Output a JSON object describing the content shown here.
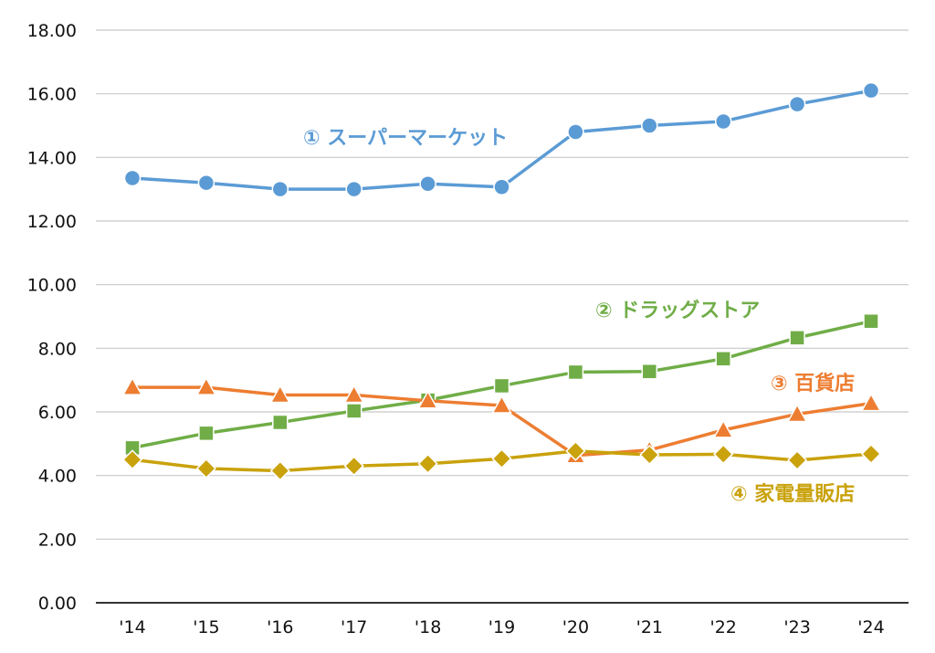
{
  "chart_data": {
    "type": "line",
    "categories": [
      "'14",
      "'15",
      "'16",
      "'17",
      "'18",
      "'19",
      "'20",
      "'21",
      "'22",
      "'23",
      "'24"
    ],
    "ylim": [
      0,
      18
    ],
    "yticks": [
      "0.00",
      "2.00",
      "4.00",
      "6.00",
      "8.00",
      "10.00",
      "12.00",
      "14.00",
      "16.00",
      "18.00"
    ],
    "grid": true,
    "series": [
      {
        "name": "① スーパーマーケット",
        "color": "#5b9bd5",
        "marker": "circle",
        "values": [
          13.35,
          13.2,
          13.0,
          13.0,
          13.17,
          13.07,
          14.8,
          15.0,
          15.13,
          15.67,
          16.1
        ]
      },
      {
        "name": "② ドラッグストア",
        "color": "#70ad47",
        "marker": "square",
        "values": [
          4.87,
          5.33,
          5.67,
          6.03,
          6.37,
          6.82,
          7.25,
          7.27,
          7.67,
          8.33,
          8.85
        ]
      },
      {
        "name": "③ 百貨店",
        "color": "#ed7d31",
        "marker": "triangle",
        "values": [
          6.77,
          6.77,
          6.53,
          6.53,
          6.35,
          6.2,
          4.63,
          4.8,
          5.43,
          5.93,
          6.27
        ]
      },
      {
        "name": "④ 家電量販店",
        "color": "#c9a20c",
        "marker": "diamond",
        "values": [
          4.5,
          4.22,
          4.15,
          4.3,
          4.37,
          4.53,
          4.77,
          4.65,
          4.67,
          4.48,
          4.68
        ]
      }
    ]
  }
}
